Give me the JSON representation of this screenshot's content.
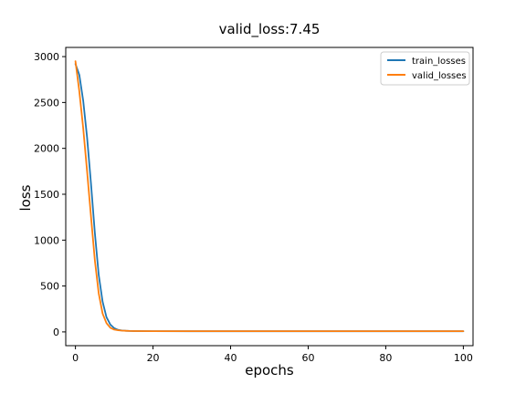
{
  "chart_data": {
    "type": "line",
    "title": "valid_loss:7.45",
    "xlabel": "epochs",
    "ylabel": "loss",
    "xlim": [
      -2.5,
      102.5
    ],
    "ylim": [
      -150,
      3100
    ],
    "x_ticks": [
      0,
      20,
      40,
      60,
      80,
      100
    ],
    "y_ticks": [
      0,
      500,
      1000,
      1500,
      2000,
      2500,
      3000
    ],
    "x_tick_labels": [
      "0",
      "20",
      "40",
      "60",
      "80",
      "100"
    ],
    "y_tick_labels": [
      "0",
      "500",
      "1000",
      "1500",
      "2000",
      "2500",
      "3000"
    ],
    "legend_position": "top-right",
    "grid": false,
    "series": [
      {
        "name": "train_losses",
        "color": "#1f77b4",
        "x": [
          0,
          1,
          2,
          3,
          4,
          5,
          6,
          7,
          8,
          9,
          10,
          11,
          12,
          13,
          14,
          15,
          20,
          30,
          40,
          50,
          60,
          70,
          80,
          90,
          100
        ],
        "y": [
          2920,
          2800,
          2520,
          2120,
          1620,
          1080,
          620,
          330,
          160,
          80,
          40,
          22,
          15,
          12,
          10,
          9,
          8,
          7,
          7,
          7,
          7,
          7,
          7,
          7,
          7
        ]
      },
      {
        "name": "valid_losses",
        "color": "#ff7f0e",
        "x": [
          0,
          1,
          2,
          3,
          4,
          5,
          6,
          7,
          8,
          9,
          10,
          11,
          12,
          13,
          14,
          15,
          20,
          30,
          40,
          50,
          60,
          70,
          80,
          90,
          100
        ],
        "y": [
          2950,
          2620,
          2220,
          1750,
          1260,
          780,
          420,
          200,
          95,
          45,
          25,
          18,
          14,
          12,
          10,
          9,
          8,
          7.45,
          7.45,
          7.45,
          7.45,
          7.45,
          7.45,
          7.45,
          7.45
        ]
      }
    ]
  }
}
